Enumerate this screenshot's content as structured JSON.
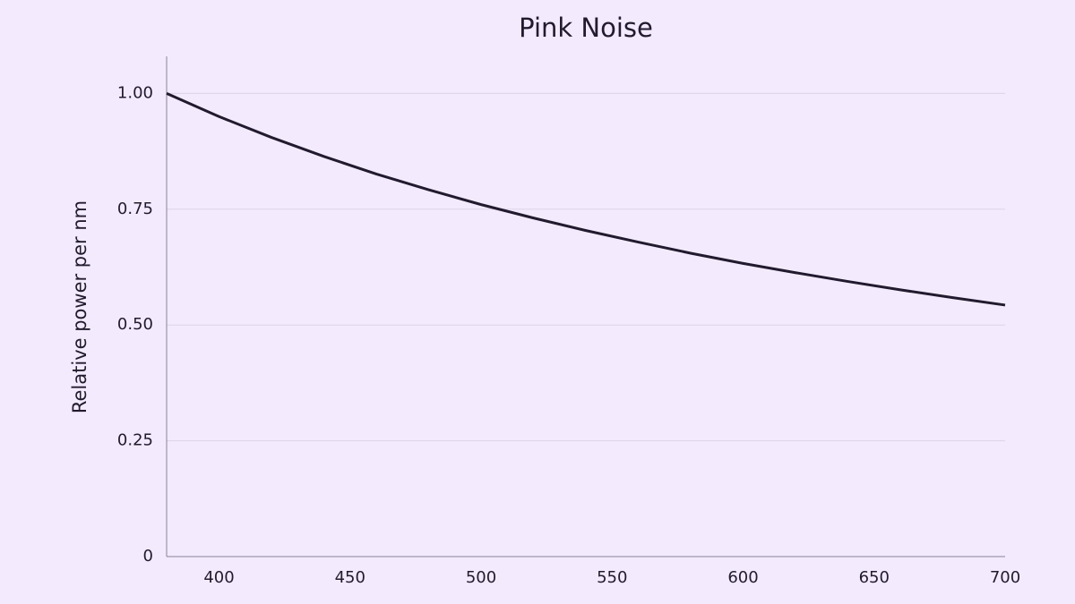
{
  "chart_data": {
    "type": "line",
    "title": "Pink Noise",
    "y_label": "Relative power per nm",
    "x": [
      380,
      400,
      420,
      440,
      460,
      480,
      500,
      520,
      540,
      560,
      580,
      600,
      620,
      640,
      660,
      680,
      700
    ],
    "values": [
      1.0,
      0.95,
      0.905,
      0.864,
      0.826,
      0.792,
      0.76,
      0.731,
      0.704,
      0.679,
      0.655,
      0.633,
      0.613,
      0.594,
      0.576,
      0.559,
      0.543
    ],
    "color": "#221a2e",
    "xlim": [
      380,
      700
    ],
    "xticks": [
      400,
      450,
      500,
      550,
      600,
      650,
      700
    ],
    "ylim": [
      0,
      1.08
    ],
    "yticks": [
      0,
      0.25,
      {
        "value": 0.5,
        "label": "0.50"
      },
      0.75,
      {
        "value": 1,
        "label": "1.00"
      }
    ],
    "grid": true
  }
}
